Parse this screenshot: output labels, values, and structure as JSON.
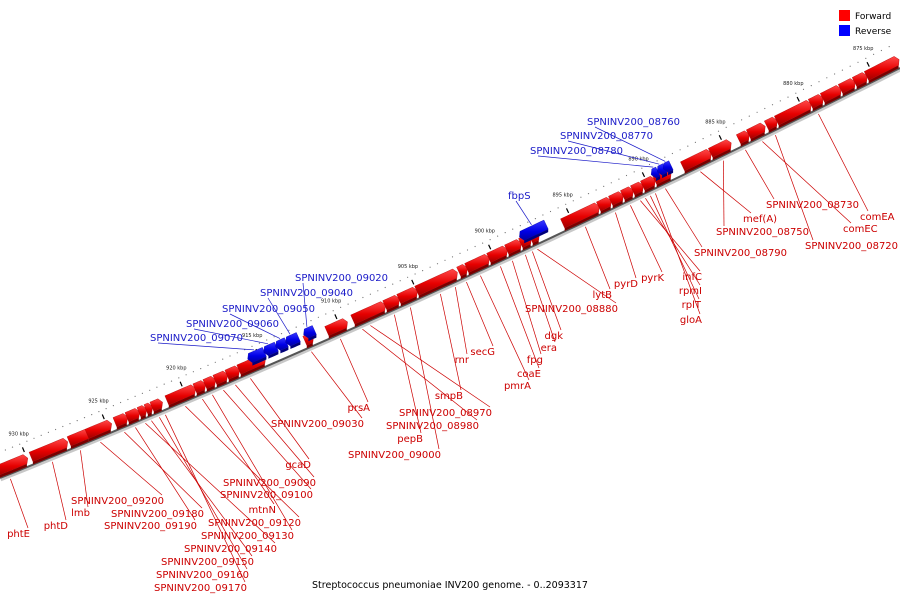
{
  "caption": "Streptococcus pneumoniae INV200 genome. - 0..2093317",
  "legend": [
    {
      "label": "Forward",
      "color": "#ff0000"
    },
    {
      "label": "Reverse",
      "color": "#0000ff"
    }
  ],
  "scale_ticks": [
    "930 kbp",
    "925 kbp",
    "920 kbp",
    "915 kbp",
    "910 kbp",
    "905 kbp",
    "900 kbp",
    "895 kbp",
    "890 kbp",
    "885 kbp",
    "880 kbp",
    "875 kbp"
  ],
  "forward_labels": [
    "phtE",
    "phtD",
    "lmb",
    "SPNINV200_09200",
    "SPNINV200_09180",
    "SPNINV200_09190",
    "SPNINV200_09140",
    "SPNINV200_09150",
    "SPNINV200_09160",
    "SPNINV200_09170",
    "mtnN",
    "SPNINV200_09120",
    "SPNINV200_09130",
    "SPNINV200_09100",
    "SPNINV200_09090",
    "gcaD",
    "SPNINV200_09030",
    "prsA",
    "SPNINV200_08970",
    "SPNINV200_08980",
    "pepB",
    "SPNINV200_09000",
    "smpB",
    "rnr",
    "secG",
    "pmrA",
    "coaE",
    "fpg",
    "era",
    "dgk",
    "SPNINV200_08880",
    "lytB",
    "pyrD",
    "pyrK",
    "infC",
    "rpmI",
    "rplT",
    "gloA",
    "SPNINV200_08790",
    "mef(A)",
    "SPNINV200_08750",
    "SPNINV200_08730",
    "comEC",
    "comEA",
    "SPNINV200_08720"
  ],
  "reverse_labels": [
    "SPNINV200_09070",
    "SPNINV200_09060",
    "SPNINV200_09050",
    "SPNINV200_09040",
    "SPNINV200_09020",
    "fbpS",
    "SPNINV200_08780",
    "SPNINV200_08770",
    "SPNINV200_08760"
  ]
}
